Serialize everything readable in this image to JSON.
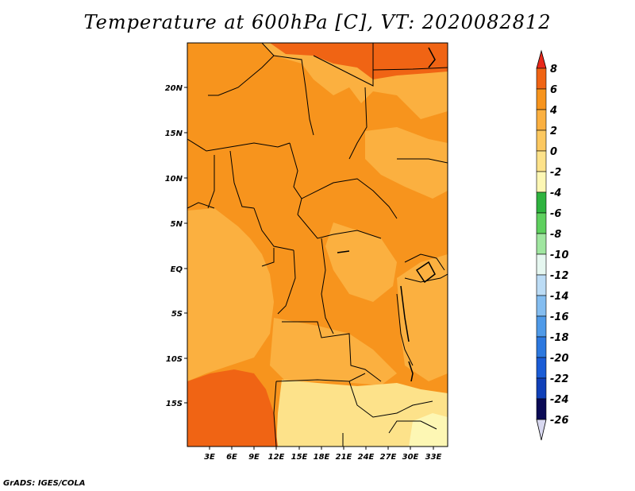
{
  "title": "Temperature at 600hPa [C], VT: 2020082812",
  "credit": "GrADS: IGES/COLA",
  "map": {
    "lon_labels": [
      "3E",
      "6E",
      "9E",
      "12E",
      "15E",
      "18E",
      "21E",
      "24E",
      "27E",
      "30E",
      "33E"
    ],
    "lat_labels": [
      "20N",
      "15N",
      "10N",
      "5N",
      "EQ",
      "5S",
      "10S",
      "15S"
    ],
    "colors": {
      "deep_orange": "#f06414",
      "orange": "#f7941d",
      "light_orange": "#fbb040",
      "yellow": "#fde28a",
      "border": "#000000"
    }
  },
  "colorbar": {
    "labels": [
      "8",
      "6",
      "4",
      "2",
      "0",
      "-2",
      "-4",
      "-6",
      "-8",
      "-10",
      "-12",
      "-14",
      "-16",
      "-18",
      "-20",
      "-22",
      "-24",
      "-26"
    ],
    "colors": [
      "#e8281a",
      "#f06414",
      "#f7941d",
      "#fbb040",
      "#fde28a",
      "#fdf7b4",
      "#2fb33f",
      "#5fd05f",
      "#a0e6a0",
      "#e6f7f0",
      "#bcdcf5",
      "#84bdf0",
      "#4f9ae8",
      "#2c78df",
      "#1a5cd6",
      "#1040b8",
      "#0a2880",
      "#0a0a55",
      "#d8d8f0"
    ]
  }
}
